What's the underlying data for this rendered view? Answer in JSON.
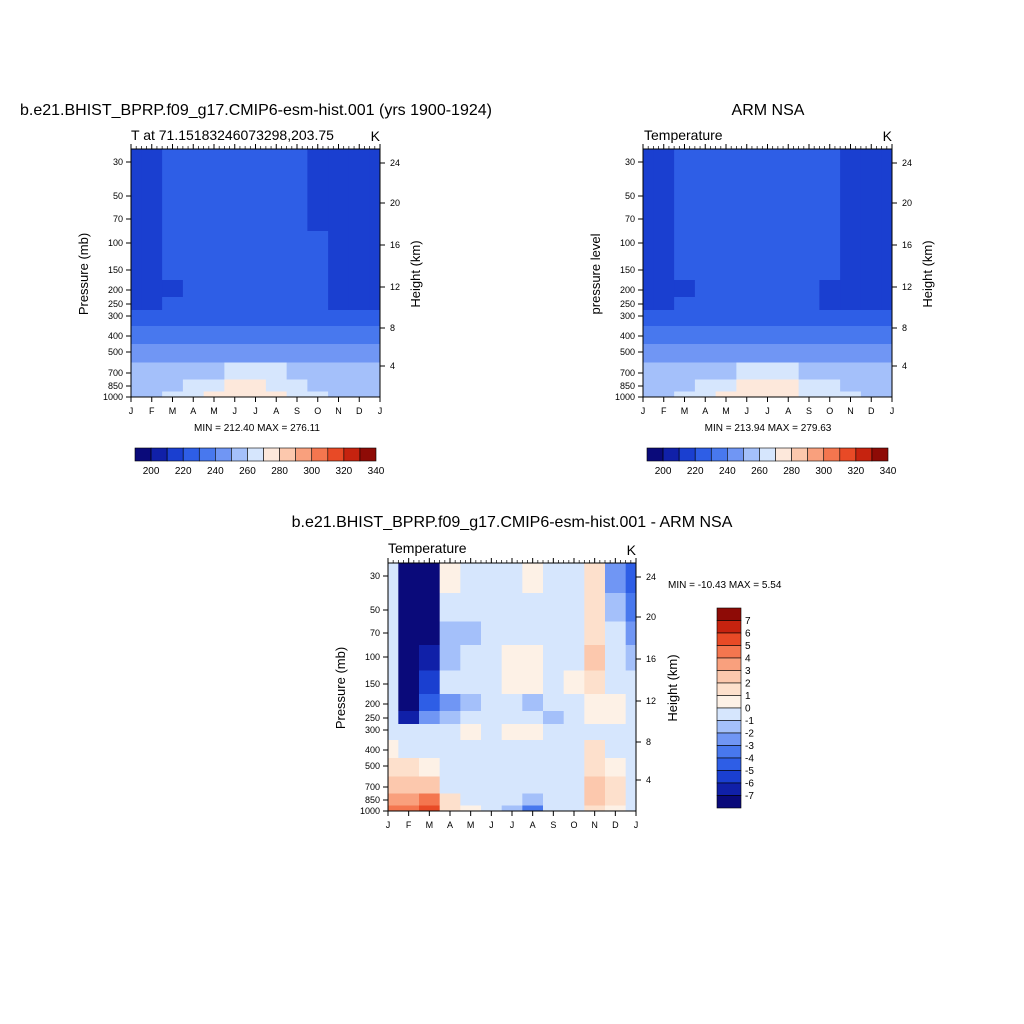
{
  "figure": {
    "months": [
      "J",
      "F",
      "M",
      "A",
      "M",
      "J",
      "J",
      "A",
      "S",
      "O",
      "N",
      "D",
      "J"
    ],
    "pressure_ticks": [
      "30",
      "50",
      "70",
      "100",
      "150",
      "200",
      "250",
      "300",
      "400",
      "500",
      "700",
      "850",
      "1000"
    ],
    "height_ticks": [
      "24",
      "20",
      "16",
      "12",
      "8",
      "4"
    ]
  },
  "panels": [
    {
      "title": "b.e21.BHIST_BPRP.f09_g17.CMIP6-esm-hist.001 (yrs 1900-1924)",
      "subtitle": "T at 71.15183246073298,203.75",
      "units": "K",
      "ylabel": "Pressure (mb)",
      "ylabel_right": "Height (km)",
      "stats": "MIN = 212.40 MAX = 276.11"
    },
    {
      "title": "ARM NSA",
      "subtitle": "Temperature",
      "units": "K",
      "ylabel": "pressure level",
      "ylabel_right": "Height (km)",
      "stats": "MIN = 213.94 MAX = 279.63"
    },
    {
      "title": "b.e21.BHIST_BPRP.f09_g17.CMIP6-esm-hist.001 - ARM NSA",
      "subtitle": "Temperature",
      "units": "K",
      "ylabel": "Pressure (mb)",
      "ylabel_right": "Height (km)",
      "stats": "MIN = -10.43 MAX =   5.54"
    }
  ],
  "colorbars": {
    "abs": {
      "labels": [
        "200",
        "220",
        "240",
        "260",
        "280",
        "300",
        "320",
        "340"
      ],
      "colors": [
        "#0a0a7a",
        "#1020a8",
        "#1a3fd0",
        "#2e5ee6",
        "#4878ee",
        "#7096f4",
        "#a4c0fa",
        "#d6e6fd",
        "#fde8db",
        "#fcc8ad",
        "#f9a07d",
        "#f4764f",
        "#e84a26",
        "#c6230f",
        "#8e0b06"
      ]
    },
    "diff": {
      "labels": [
        "7",
        "6",
        "5",
        "4",
        "3",
        "2",
        "1",
        "0",
        "-1",
        "-2",
        "-3",
        "-4",
        "-5",
        "-6",
        "-7"
      ],
      "colors": [
        "#8e0b06",
        "#c6230f",
        "#e84a26",
        "#f4764f",
        "#f9a07d",
        "#fcc8ad",
        "#fde0cc",
        "#fdf1e6",
        "#d6e6fd",
        "#a4c0fa",
        "#7096f4",
        "#4878ee",
        "#2e5ee6",
        "#1a3fd0",
        "#1020a8",
        "#0a0a7a"
      ]
    }
  },
  "chart_data": [
    {
      "type": "heatmap",
      "title": "b.e21.BHIST_BPRP.f09_g17.CMIP6-esm-hist.001 (yrs 1900-1924)",
      "subtitle": "T at 71.15183246073298,203.75",
      "units": "K",
      "x": [
        "J",
        "F",
        "M",
        "A",
        "M",
        "J",
        "J",
        "A",
        "S",
        "O",
        "N",
        "D",
        "J"
      ],
      "y": [
        30,
        50,
        70,
        100,
        150,
        200,
        250,
        300,
        400,
        500,
        700,
        850,
        1000
      ],
      "ylabel": "Pressure (mb)",
      "ylabel_right": "Height (km)",
      "min": 212.4,
      "max": 276.11,
      "levels": [
        200,
        210,
        220,
        230,
        240,
        250,
        260,
        270,
        280,
        290,
        300,
        310,
        320,
        330,
        340
      ],
      "values": [
        [
          215,
          215,
          220,
          222,
          223,
          224,
          226,
          222,
          220,
          218,
          216,
          215,
          215
        ],
        [
          216,
          216,
          220,
          222,
          224,
          225,
          225,
          223,
          220,
          218,
          216,
          216,
          216
        ],
        [
          217,
          217,
          221,
          222,
          224,
          224,
          224,
          223,
          221,
          219,
          217,
          217,
          217
        ],
        [
          218,
          218,
          221,
          222,
          223,
          223,
          223,
          222,
          221,
          220,
          218,
          218,
          218
        ],
        [
          219,
          219,
          220,
          221,
          222,
          222,
          222,
          222,
          221,
          220,
          219,
          219,
          219
        ],
        [
          218,
          218,
          219,
          221,
          223,
          224,
          224,
          223,
          221,
          220,
          219,
          218,
          218
        ],
        [
          219,
          219,
          220,
          222,
          224,
          226,
          226,
          225,
          222,
          220,
          219,
          219,
          219
        ],
        [
          222,
          222,
          223,
          225,
          227,
          228,
          228,
          227,
          225,
          223,
          222,
          222,
          222
        ],
        [
          232,
          232,
          233,
          235,
          237,
          238,
          238,
          237,
          235,
          233,
          232,
          232,
          232
        ],
        [
          240,
          240,
          241,
          243,
          246,
          248,
          248,
          247,
          244,
          242,
          240,
          240,
          240
        ],
        [
          250,
          250,
          251,
          254,
          258,
          261,
          262,
          260,
          256,
          253,
          251,
          250,
          250
        ],
        [
          255,
          255,
          257,
          261,
          266,
          270,
          271,
          269,
          264,
          259,
          256,
          255,
          255
        ],
        [
          258,
          258,
          261,
          266,
          272,
          276,
          276,
          274,
          268,
          262,
          259,
          258,
          258
        ]
      ]
    },
    {
      "type": "heatmap",
      "title": "ARM NSA",
      "subtitle": "Temperature",
      "units": "K",
      "x": [
        "J",
        "F",
        "M",
        "A",
        "M",
        "J",
        "J",
        "A",
        "S",
        "O",
        "N",
        "D",
        "J"
      ],
      "y": [
        30,
        50,
        70,
        100,
        150,
        200,
        250,
        300,
        400,
        500,
        700,
        850,
        1000
      ],
      "ylabel": "pressure level",
      "ylabel_right": "Height (km)",
      "min": 213.94,
      "max": 279.63,
      "levels": [
        200,
        210,
        220,
        230,
        240,
        250,
        260,
        270,
        280,
        290,
        300,
        310,
        320,
        330,
        340
      ],
      "values": [
        [
          216,
          218,
          220,
          222,
          224,
          225,
          226,
          224,
          222,
          221,
          217,
          216,
          216
        ],
        [
          216,
          218,
          221,
          222,
          224,
          225,
          225,
          223,
          222,
          221,
          217,
          216,
          216
        ],
        [
          217,
          218,
          221,
          222,
          224,
          224,
          224,
          223,
          222,
          221,
          218,
          217,
          217
        ],
        [
          217,
          218,
          221,
          222,
          223,
          223,
          223,
          222,
          221,
          221,
          218,
          217,
          217
        ],
        [
          217,
          218,
          220,
          221,
          222,
          222,
          222,
          222,
          221,
          221,
          218,
          217,
          217
        ],
        [
          215,
          216,
          219,
          221,
          223,
          224,
          224,
          223,
          221,
          219,
          216,
          215,
          215
        ],
        [
          214,
          216,
          220,
          222,
          224,
          226,
          226,
          225,
          222,
          218,
          216,
          214,
          214
        ],
        [
          220,
          221,
          223,
          225,
          227,
          228,
          228,
          227,
          225,
          223,
          221,
          220,
          220
        ],
        [
          232,
          232,
          233,
          235,
          237,
          238,
          238,
          237,
          235,
          233,
          232,
          232,
          232
        ],
        [
          241,
          241,
          242,
          244,
          247,
          249,
          249,
          248,
          245,
          243,
          241,
          241,
          241
        ],
        [
          251,
          251,
          252,
          255,
          259,
          262,
          263,
          261,
          257,
          254,
          252,
          251,
          251
        ],
        [
          256,
          256,
          258,
          262,
          267,
          271,
          272,
          270,
          265,
          260,
          257,
          256,
          256
        ],
        [
          259,
          259,
          262,
          267,
          273,
          278,
          279,
          276,
          269,
          263,
          260,
          259,
          259
        ]
      ]
    },
    {
      "type": "heatmap",
      "title": "b.e21.BHIST_BPRP.f09_g17.CMIP6-esm-hist.001 - ARM NSA",
      "subtitle": "Temperature",
      "units": "K",
      "x": [
        "J",
        "F",
        "M",
        "A",
        "M",
        "J",
        "J",
        "A",
        "S",
        "O",
        "N",
        "D",
        "J"
      ],
      "y": [
        30,
        50,
        70,
        100,
        150,
        200,
        250,
        300,
        400,
        500,
        700,
        850,
        1000
      ],
      "ylabel": "Pressure (mb)",
      "ylabel_right": "Height (km)",
      "min": -10.43,
      "max": 5.54,
      "levels": [
        -7,
        -6,
        -5,
        -4,
        -3,
        -2,
        -1,
        0,
        1,
        2,
        3,
        4,
        5,
        6,
        7
      ],
      "values": [
        [
          -0.5,
          -9,
          -8,
          0.5,
          -0.3,
          -0.5,
          -0.5,
          0.5,
          -0.5,
          -0.3,
          1.5,
          -3,
          -5
        ],
        [
          -0.5,
          -9,
          -8,
          -0.5,
          -0.5,
          -0.5,
          -0.3,
          -0.3,
          -0.5,
          -0.3,
          1.5,
          -2,
          -4
        ],
        [
          -0.5,
          -9,
          -8,
          -1.5,
          -1.5,
          -0.5,
          -0.3,
          -0.3,
          -0.5,
          -0.3,
          1.5,
          -1,
          -3
        ],
        [
          -0.5,
          -9,
          -7,
          -1.5,
          -0.5,
          -0.3,
          0.5,
          0.3,
          -0.5,
          -0.3,
          2,
          -0.5,
          -2
        ],
        [
          -0.5,
          -9,
          -6,
          -1,
          -0.5,
          -0.3,
          0.5,
          0.5,
          -0.3,
          0.5,
          1.5,
          -0.5,
          -1
        ],
        [
          -0.5,
          -9,
          -5,
          -3,
          -2,
          -0.5,
          -0.5,
          -2,
          -1,
          -0.5,
          0.5,
          0.5,
          -0.5
        ],
        [
          -0.5,
          -7,
          -3,
          -2,
          -1,
          -0.5,
          -0.5,
          -1,
          -2,
          -0.5,
          0.5,
          0.5,
          -0.5
        ],
        [
          -0.5,
          -1,
          -0.5,
          -0.5,
          0.5,
          -0.5,
          0.5,
          0.5,
          -0.5,
          -0.5,
          -0.5,
          -0.5,
          -0.5
        ],
        [
          0.5,
          -0.5,
          -0.5,
          -0.5,
          -0.5,
          -0.5,
          -0.5,
          -0.5,
          -0.5,
          -0.5,
          1,
          -0.5,
          -0.5
        ],
        [
          1,
          1,
          0.5,
          -0.5,
          -0.5,
          -0.5,
          -0.5,
          -0.5,
          -0.5,
          -0.5,
          1.5,
          0.5,
          -0.5
        ],
        [
          2,
          2,
          2,
          -0.5,
          -0.5,
          -0.5,
          -0.5,
          -1,
          -0.5,
          -0.5,
          2,
          1,
          -0.5
        ],
        [
          3,
          3,
          4,
          1,
          -0.5,
          -0.5,
          -1,
          -2,
          -1,
          -0.5,
          2,
          1,
          -0.5
        ],
        [
          4,
          4,
          5.5,
          1,
          0.5,
          -0.5,
          -2,
          -4,
          -1,
          -0.5,
          1.5,
          0.5,
          -0.5
        ]
      ]
    }
  ]
}
